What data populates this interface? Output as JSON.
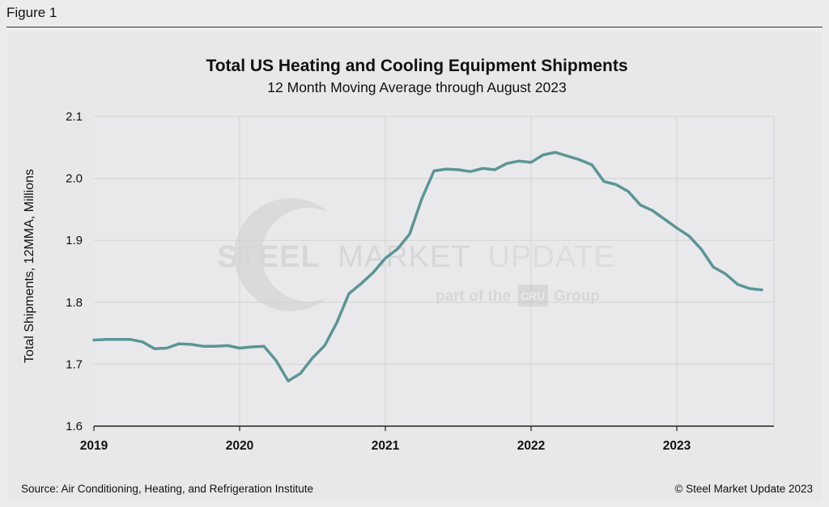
{
  "figure_label": "Figure 1",
  "source_text": "Source: Air Conditioning, Heating, and Refrigeration Institute",
  "copyright_text": "© Steel Market Update 2023",
  "watermark": {
    "brand": "STEEL MARKET UPDATE",
    "brand_bold": "STEEL",
    "brand_mid": "MARKET",
    "brand_light": "UPDATE",
    "tagline_pre": "part of the",
    "tagline_logo": "CRU",
    "tagline_post": "Group"
  },
  "colors": {
    "line": "#5b9597",
    "plot_bg": "#e9e9eb",
    "grid": "#d2d2d2"
  },
  "chart_data": {
    "type": "line",
    "title": "Total US Heating and Cooling Equipment Shipments",
    "subtitle": "12 Month Moving Average through August 2023",
    "ylabel": "Total Shipments, 12MMA, Millions",
    "xlabel": "",
    "ylim": [
      1.6,
      2.1
    ],
    "yticks": [
      "1.6",
      "1.7",
      "1.8",
      "1.9",
      "2.0",
      "2.1"
    ],
    "xlim": [
      2019.0,
      2023.6667
    ],
    "xticks": [
      "2019",
      "2020",
      "2021",
      "2022",
      "2023"
    ],
    "grid": true,
    "x_start": "2019-01",
    "series": [
      {
        "values": [
          1.739,
          1.74,
          1.74,
          1.74,
          1.736,
          1.725,
          1.726,
          1.733,
          1.732,
          1.729,
          1.729,
          1.73,
          1.726,
          1.728,
          1.729,
          1.706,
          1.673,
          1.685,
          1.71,
          1.73,
          1.767,
          1.814,
          1.83,
          1.848,
          1.871,
          1.886,
          1.91,
          1.967,
          2.012,
          2.015,
          2.014,
          2.011,
          2.016,
          2.014,
          2.024,
          2.028,
          2.026,
          2.038,
          2.042,
          2.036,
          2.03,
          2.022,
          1.995,
          1.99,
          1.979,
          1.957,
          1.948,
          1.934,
          1.92,
          1.907,
          1.886,
          1.857,
          1.846,
          1.829,
          1.822,
          1.82
        ]
      }
    ]
  }
}
